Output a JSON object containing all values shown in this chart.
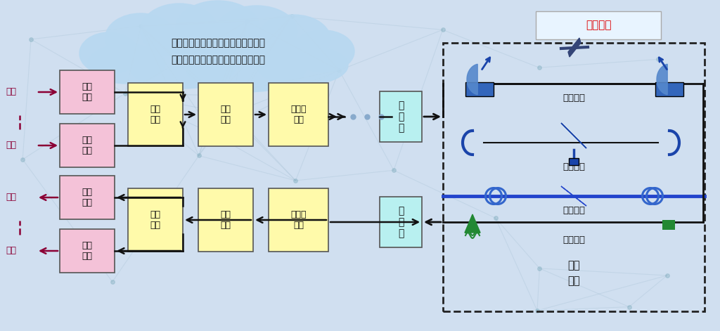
{
  "bg_color": "#d0dff0",
  "net_line_color": "#a0c0d8",
  "title_text": "光纤通信是人类历史上的重大突破，\n光纤通信已成为信息社会的神经系统",
  "channel_label": "通信信道",
  "transmission_label": "传输\n系统",
  "comm_types": [
    "卫星通信",
    "微波通信",
    "光纤通信",
    "移动通信"
  ],
  "box_pink": "#f4c2d8",
  "box_yellow": "#fffaaa",
  "box_cyan": "#b8f0f0",
  "channel_label_bg": "#e8f4ff",
  "channel_label_color": "#dd0000",
  "cloud_color": "#b8d8f0",
  "arrow_color": "#111111",
  "info_arrow_color": "#8b0035",
  "blue_dark": "#1a44aa",
  "blue_mid": "#3366cc",
  "fiber_blue": "#2244cc",
  "green_dark": "#226622",
  "box_border": "#555555",
  "dashed_border": "#222222",
  "sat_box_color": "#3366bb"
}
